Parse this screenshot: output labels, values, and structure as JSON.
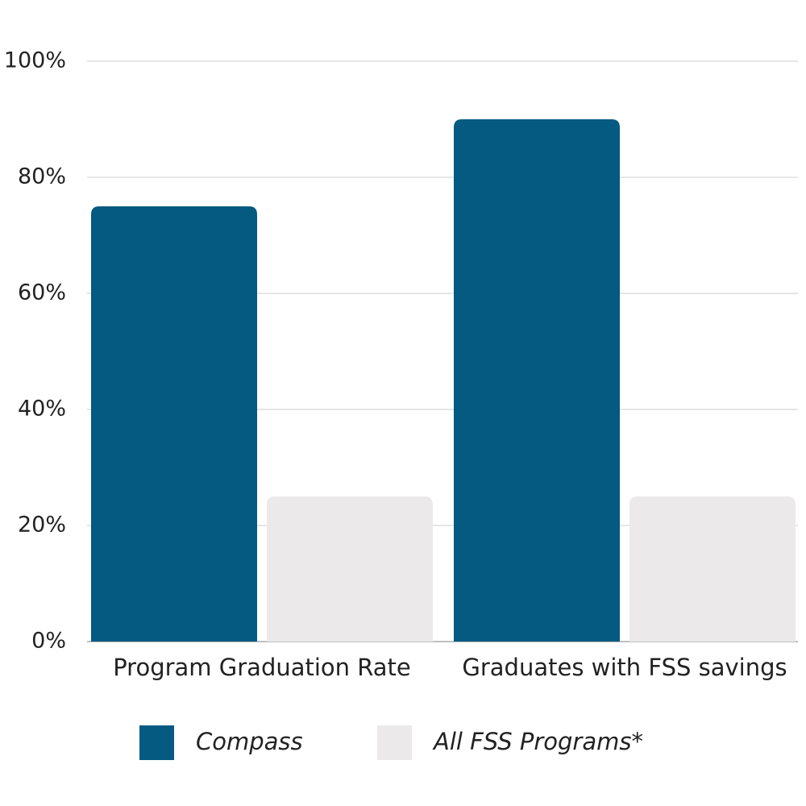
{
  "chart_data": {
    "type": "bar",
    "categories": [
      "Program Graduation Rate",
      "Graduates with FSS savings"
    ],
    "series": [
      {
        "name": "Compass",
        "color": "#045a80",
        "values": [
          75,
          90
        ]
      },
      {
        "name": "All FSS Programs*",
        "color": "#ebe9ea",
        "values": [
          25,
          25
        ]
      }
    ],
    "ylim": [
      0,
      100
    ],
    "yticks": [
      {
        "value": 0,
        "label": "0%"
      },
      {
        "value": 20,
        "label": "20%"
      },
      {
        "value": 40,
        "label": "40%"
      },
      {
        "value": 60,
        "label": "60%"
      },
      {
        "value": 80,
        "label": "80%"
      },
      {
        "value": 100,
        "label": "100%"
      }
    ],
    "grid": true
  }
}
